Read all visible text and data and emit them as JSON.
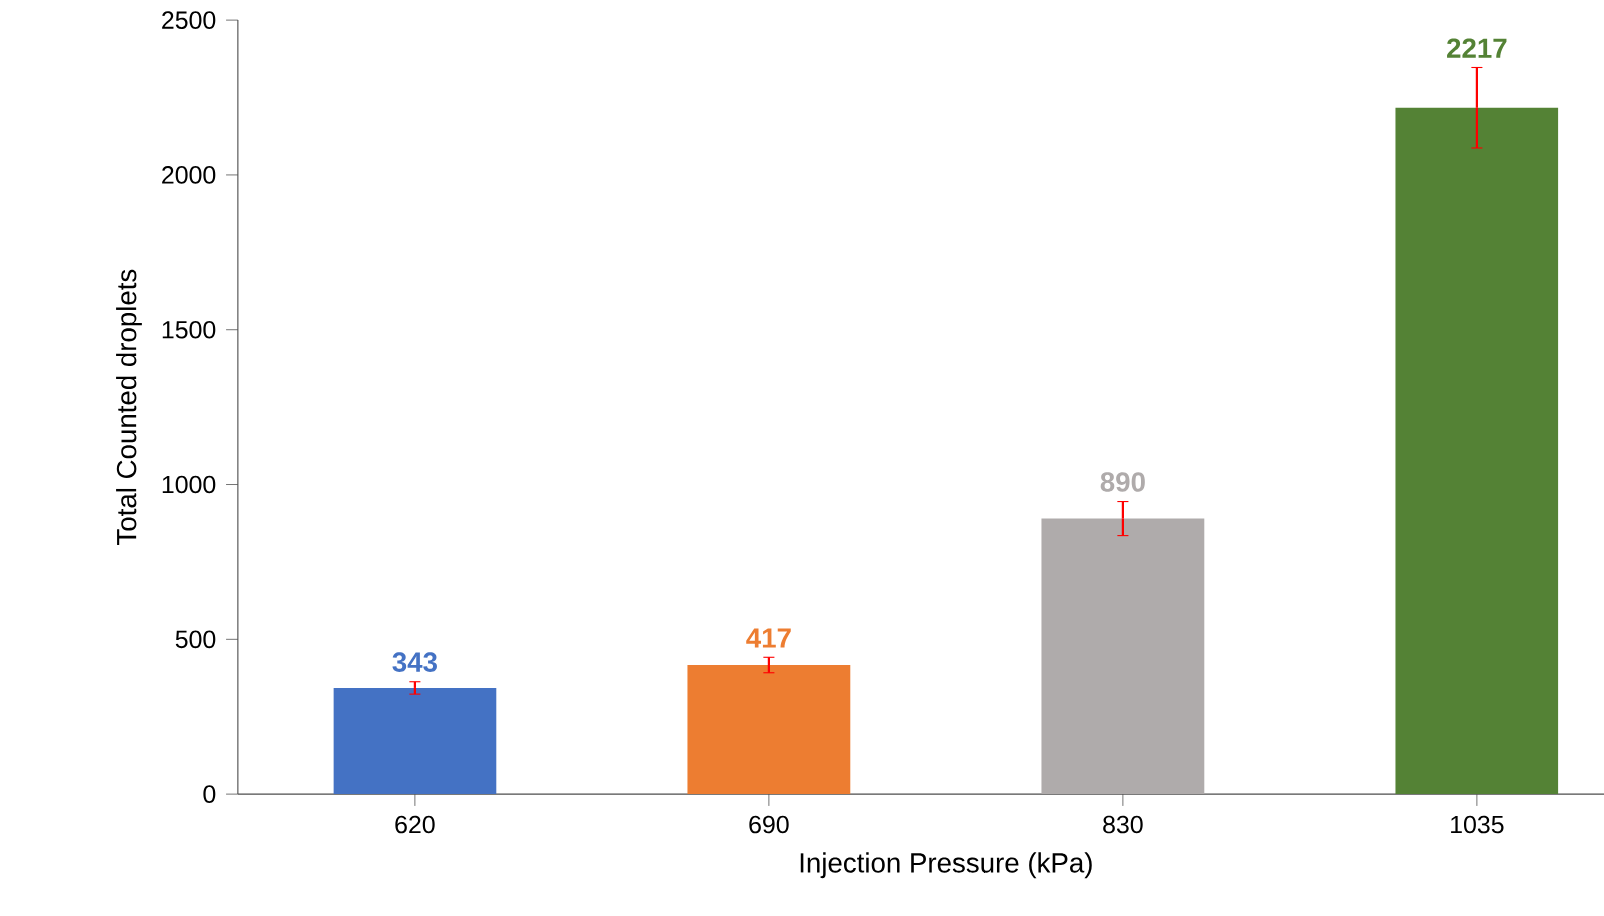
{
  "chart_data": {
    "type": "bar",
    "xlabel": "Injection Pressure (kPa)",
    "ylabel": "Total Counted droplets",
    "categories": [
      "620",
      "690",
      "830",
      "1035"
    ],
    "values": [
      343,
      417,
      890,
      2217
    ],
    "colors": [
      "#4472c4",
      "#ed7d31",
      "#afabab",
      "#548235"
    ],
    "errors": [
      20,
      25,
      55,
      130
    ],
    "ylim": [
      0,
      2500
    ],
    "yticks": [
      0,
      500,
      1000,
      1500,
      2000,
      2500
    ],
    "data_labels": true,
    "grid": false
  }
}
